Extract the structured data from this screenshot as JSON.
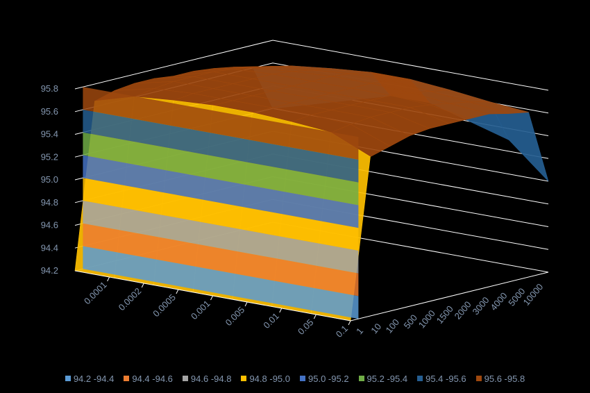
{
  "chart_data": {
    "type": "surface",
    "title": "",
    "xlabel": "",
    "ylabel": "",
    "zlabel": "",
    "x_categories": [
      "0.0001",
      "0.0002",
      "0.0005",
      "0.001",
      "0.005",
      "0.01",
      "0.05",
      "0.1"
    ],
    "y_categories": [
      "1",
      "10",
      "100",
      "500",
      "1000",
      "1500",
      "2000",
      "3000",
      "4000",
      "5000",
      "10000"
    ],
    "z_ticks": [
      "94.2",
      "94.4",
      "94.6",
      "94.8",
      "95.0",
      "95.2",
      "95.4",
      "95.6",
      "95.8"
    ],
    "zlim": [
      94.2,
      95.8
    ],
    "values": [
      [
        94.2,
        94.2,
        94.2,
        94.2,
        94.2,
        94.2,
        94.2,
        94.2
      ],
      [
        95.65,
        95.75,
        95.78,
        95.8,
        95.8,
        95.78,
        95.75,
        95.6
      ],
      [
        95.7,
        95.78,
        95.8,
        95.8,
        95.8,
        95.8,
        95.78,
        95.65
      ],
      [
        95.72,
        95.8,
        95.8,
        95.8,
        95.8,
        95.8,
        95.8,
        95.7
      ],
      [
        95.72,
        95.8,
        95.8,
        95.8,
        95.8,
        95.8,
        95.8,
        95.72
      ],
      [
        95.7,
        95.8,
        95.8,
        95.8,
        95.8,
        95.8,
        95.8,
        95.72
      ],
      [
        95.7,
        95.78,
        95.8,
        95.8,
        95.8,
        95.8,
        95.78,
        95.72
      ],
      [
        95.68,
        95.75,
        95.78,
        95.8,
        95.8,
        95.78,
        95.75,
        95.72
      ],
      [
        95.65,
        95.72,
        95.75,
        95.78,
        95.78,
        95.75,
        95.72,
        95.68
      ],
      [
        95.6,
        95.68,
        95.72,
        95.75,
        95.75,
        95.72,
        95.68,
        95.65
      ],
      [
        95.2,
        95.3,
        95.4,
        95.5,
        95.5,
        95.4,
        95.3,
        95.0
      ]
    ],
    "legend_position": "bottom",
    "legend": [
      {
        "label": "94.2 -94.4",
        "color": "#5b9bd5"
      },
      {
        "label": "94.4 -94.6",
        "color": "#ed7d31"
      },
      {
        "label": "94.6 -94.8",
        "color": "#a5a5a5"
      },
      {
        "label": "94.8 -95.0",
        "color": "#ffc000"
      },
      {
        "label": "95.0 -95.2",
        "color": "#4472c4"
      },
      {
        "label": "95.2 -95.4",
        "color": "#70ad47"
      },
      {
        "label": "95.4 -95.6",
        "color": "#255e91"
      },
      {
        "label": "95.6 -95.8",
        "color": "#9e480e"
      }
    ],
    "grid": true
  },
  "style": {
    "background": "#000000",
    "gridline_color": "#ffffff",
    "tick_label_color": "#8497b0",
    "legend_label_color": "#8497b0"
  }
}
